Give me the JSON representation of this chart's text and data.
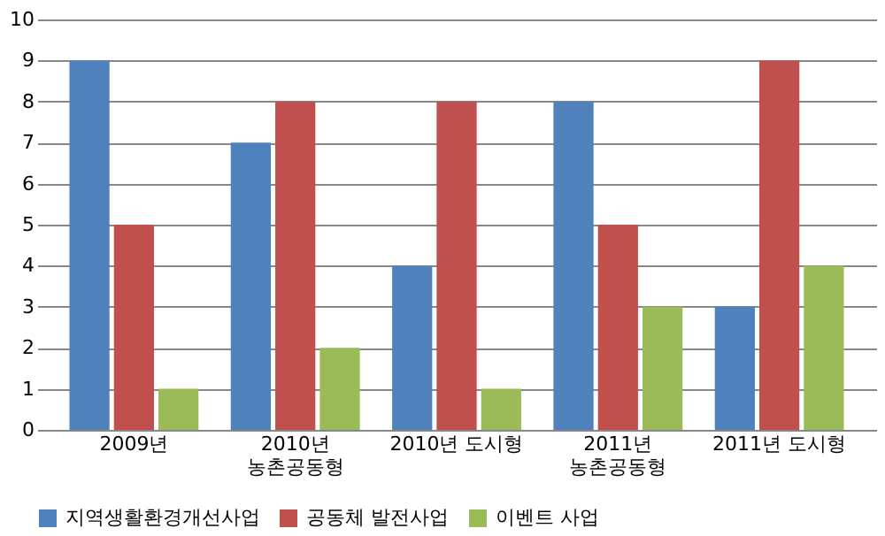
{
  "chart_data": {
    "type": "bar",
    "categories": [
      "2009년",
      "2010년\n농촌공동형",
      "2010년 도시형",
      "2011년\n농촌공동형",
      "2011년 도시형"
    ],
    "series": [
      {
        "name": "지역생활환경개선사업",
        "color": "#4f81bd",
        "values": [
          9,
          7,
          4,
          8,
          3
        ]
      },
      {
        "name": "공동체 발전사업",
        "color": "#c0504d",
        "values": [
          5,
          8,
          8,
          5,
          9
        ]
      },
      {
        "name": "이벤트 사업",
        "color": "#9bbb59",
        "values": [
          1,
          2,
          1,
          3,
          4
        ]
      }
    ],
    "ylim": [
      0,
      10
    ],
    "yticks": [
      0,
      1,
      2,
      3,
      4,
      5,
      6,
      7,
      8,
      9,
      10
    ],
    "grid": "y",
    "legend": "bottom"
  }
}
